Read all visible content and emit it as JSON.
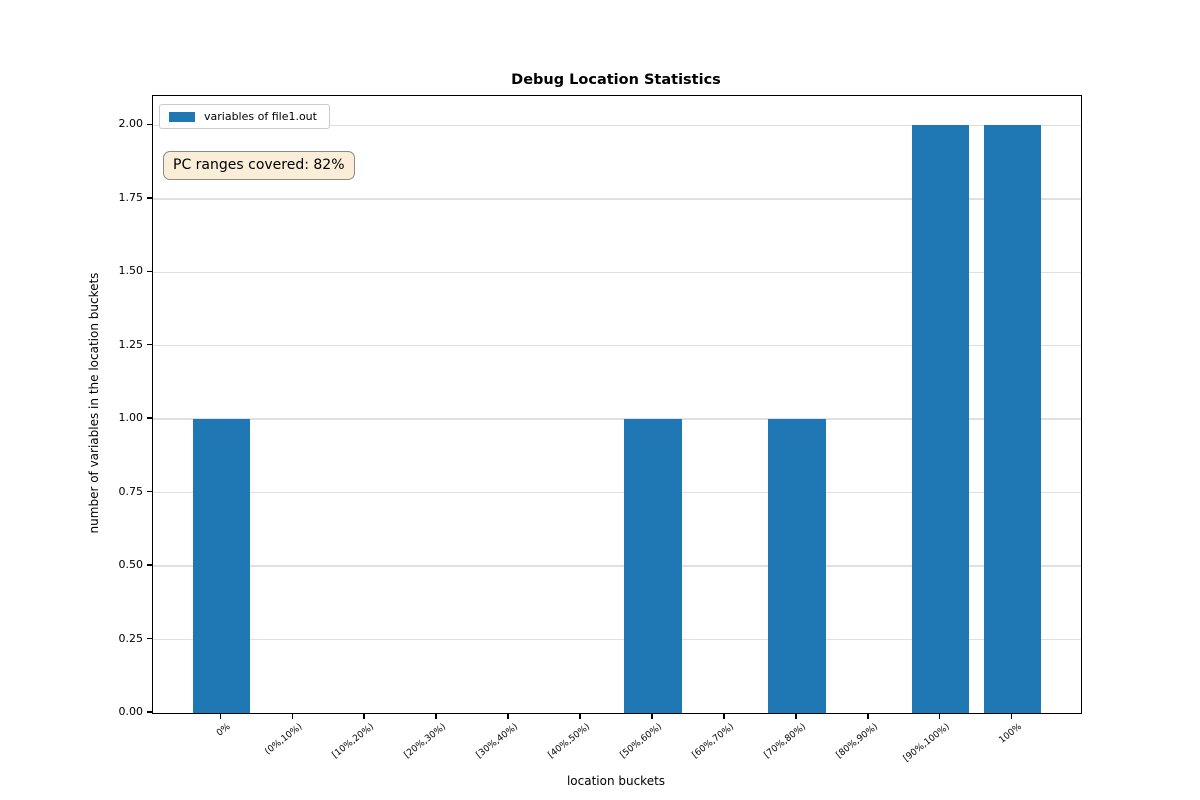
{
  "chart_data": {
    "type": "bar",
    "title": "Debug Location Statistics",
    "xlabel": "location buckets",
    "ylabel": "number of variables in the location buckets",
    "categories": [
      "0%",
      "(0%,10%)",
      "[10%,20%)",
      "[20%,30%)",
      "[30%,40%)",
      "[40%,50%)",
      "[50%,60%)",
      "[60%,70%)",
      "[70%,80%)",
      "[80%,90%)",
      "[90%,100%)",
      "100%"
    ],
    "series": [
      {
        "name": "variables of file1.out",
        "color": "#1f77b4",
        "values": [
          1,
          0,
          0,
          0,
          0,
          0,
          1,
          0,
          1,
          0,
          2,
          2
        ]
      }
    ],
    "ylim": [
      0,
      2.1
    ],
    "yticks": [
      0,
      0.25,
      0.5,
      0.75,
      1,
      1.25,
      1.5,
      1.75,
      2
    ],
    "ytick_labels": [
      "0.00",
      "0.25",
      "0.50",
      "0.75",
      "1.00",
      "1.25",
      "1.50",
      "1.75",
      "2.00"
    ],
    "bar_width_fraction": 0.8,
    "x_margin_units": 0.95,
    "grid": "horizontal-y",
    "grid_color": "#e0e0e0",
    "legend_position": "upper-left",
    "annotation": {
      "text": "PC ranges covered: 82%",
      "facecolor": "#faeed9",
      "edgecolor": "#8a8a8a"
    }
  }
}
